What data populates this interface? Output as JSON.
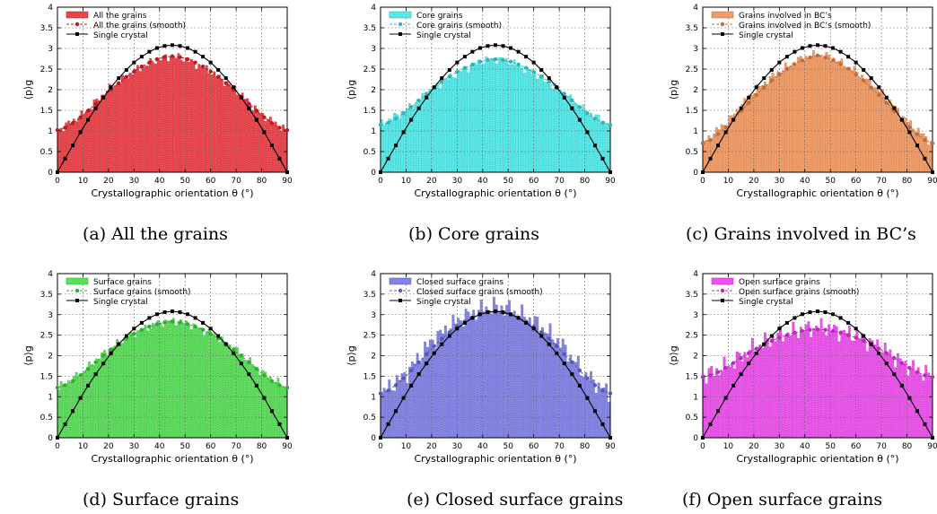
{
  "figure": {
    "captions": [
      "(a)  All the grains",
      "(b)  Core grains",
      "(c)  Grains involved in BC’s",
      "(d)  Surface grains",
      "(e)  Closed surface grains",
      "(f)  Open surface grains"
    ]
  },
  "chart_data": [
    {
      "type": "bar",
      "panel": "a",
      "xlabel": "Crystallographic orientation θ (°)",
      "ylabel": "⟨p⟩g",
      "xlim": [
        0,
        90
      ],
      "ylim": [
        0,
        4
      ],
      "xticks": [
        0,
        10,
        20,
        30,
        40,
        50,
        60,
        70,
        80,
        90
      ],
      "yticks": [
        0,
        0.5,
        1,
        1.5,
        2,
        2.5,
        3,
        3.5,
        4
      ],
      "grid": true,
      "legend_position": "top-left",
      "color": "#e8232a",
      "legend": [
        "All the grains",
        "All the grains (smooth)",
        "Single crystal"
      ],
      "histogram_profile": {
        "x": [
          0,
          10,
          20,
          30,
          40,
          45,
          50,
          60,
          70,
          80,
          90
        ],
        "y": [
          1.0,
          1.4,
          2.0,
          2.45,
          2.75,
          2.8,
          2.75,
          2.45,
          2.0,
          1.4,
          1.0
        ]
      },
      "smooth": {
        "x": [
          0,
          3,
          6,
          9,
          12,
          15,
          18,
          21,
          24,
          27,
          30,
          33,
          36,
          39,
          42,
          45,
          48,
          51,
          54,
          57,
          60,
          63,
          66,
          69,
          72,
          75,
          78,
          81,
          84,
          87,
          90
        ],
        "y": [
          1.02,
          1.08,
          1.19,
          1.33,
          1.49,
          1.66,
          1.83,
          2.0,
          2.16,
          2.31,
          2.44,
          2.56,
          2.66,
          2.74,
          2.79,
          2.81,
          2.79,
          2.74,
          2.66,
          2.56,
          2.44,
          2.31,
          2.16,
          2.0,
          1.83,
          1.66,
          1.49,
          1.33,
          1.19,
          1.08,
          1.02
        ]
      },
      "single_crystal": {
        "x": [
          0,
          3,
          6,
          9,
          12,
          15,
          18,
          21,
          24,
          27,
          30,
          33,
          36,
          39,
          42,
          45,
          48,
          51,
          54,
          57,
          60,
          63,
          66,
          69,
          72,
          75,
          78,
          81,
          84,
          87,
          90
        ],
        "y": [
          0.0,
          0.33,
          0.65,
          0.97,
          1.27,
          1.55,
          1.81,
          2.06,
          2.28,
          2.48,
          2.66,
          2.8,
          2.92,
          3.01,
          3.06,
          3.08,
          3.06,
          3.01,
          2.92,
          2.8,
          2.66,
          2.48,
          2.28,
          2.06,
          1.81,
          1.55,
          1.27,
          0.97,
          0.65,
          0.33,
          0.0
        ]
      }
    },
    {
      "type": "bar",
      "panel": "b",
      "xlabel": "Crystallographic orientation θ (°)",
      "ylabel": "⟨p⟩g",
      "xlim": [
        0,
        90
      ],
      "ylim": [
        0,
        4
      ],
      "xticks": [
        0,
        10,
        20,
        30,
        40,
        50,
        60,
        70,
        80,
        90
      ],
      "yticks": [
        0,
        0.5,
        1,
        1.5,
        2,
        2.5,
        3,
        3.5,
        4
      ],
      "grid": true,
      "legend_position": "top-left",
      "color": "#38e6e6",
      "legend": [
        "Core grains",
        "Core grains (smooth)",
        "Single crystal"
      ],
      "histogram_profile": {
        "x": [
          0,
          10,
          20,
          30,
          40,
          45,
          50,
          60,
          70,
          80,
          90
        ],
        "y": [
          1.15,
          1.5,
          2.0,
          2.4,
          2.7,
          2.75,
          2.7,
          2.4,
          2.0,
          1.5,
          1.15
        ]
      },
      "smooth": {
        "x": [
          0,
          3,
          6,
          9,
          12,
          15,
          18,
          21,
          24,
          27,
          30,
          33,
          36,
          39,
          42,
          45,
          48,
          51,
          54,
          57,
          60,
          63,
          66,
          69,
          72,
          75,
          78,
          81,
          84,
          87,
          90
        ],
        "y": [
          1.15,
          1.2,
          1.3,
          1.43,
          1.58,
          1.74,
          1.9,
          2.05,
          2.19,
          2.32,
          2.43,
          2.53,
          2.61,
          2.68,
          2.72,
          2.74,
          2.72,
          2.68,
          2.61,
          2.53,
          2.43,
          2.32,
          2.19,
          2.05,
          1.9,
          1.74,
          1.58,
          1.43,
          1.3,
          1.2,
          1.15
        ]
      },
      "single_crystal": {
        "x": [
          0,
          3,
          6,
          9,
          12,
          15,
          18,
          21,
          24,
          27,
          30,
          33,
          36,
          39,
          42,
          45,
          48,
          51,
          54,
          57,
          60,
          63,
          66,
          69,
          72,
          75,
          78,
          81,
          84,
          87,
          90
        ],
        "y": [
          0.0,
          0.33,
          0.65,
          0.97,
          1.27,
          1.55,
          1.81,
          2.06,
          2.28,
          2.48,
          2.66,
          2.8,
          2.92,
          3.01,
          3.06,
          3.08,
          3.06,
          3.01,
          2.92,
          2.8,
          2.66,
          2.48,
          2.28,
          2.06,
          1.81,
          1.55,
          1.27,
          0.97,
          0.65,
          0.33,
          0.0
        ]
      }
    },
    {
      "type": "bar",
      "panel": "c",
      "xlabel": "Crystallographic orientation θ (°)",
      "ylabel": "⟨p⟩g",
      "xlim": [
        0,
        90
      ],
      "ylim": [
        0,
        4
      ],
      "xticks": [
        0,
        10,
        20,
        30,
        40,
        50,
        60,
        70,
        80,
        90
      ],
      "yticks": [
        0,
        0.5,
        1,
        1.5,
        2,
        2.5,
        3,
        3.5,
        4
      ],
      "grid": true,
      "legend_position": "top-left",
      "color": "#f08a4b",
      "legend": [
        "Grains involved in BC’s",
        "Grains involved in BC’s (smooth)",
        "Single crystal"
      ],
      "histogram_profile": {
        "x": [
          0,
          10,
          20,
          30,
          40,
          45,
          50,
          60,
          70,
          80,
          90
        ],
        "y": [
          0.7,
          1.25,
          1.95,
          2.45,
          2.8,
          2.85,
          2.8,
          2.45,
          1.95,
          1.25,
          0.7
        ]
      },
      "smooth": {
        "x": [
          0,
          3,
          6,
          9,
          12,
          15,
          18,
          21,
          24,
          27,
          30,
          33,
          36,
          39,
          42,
          45,
          48,
          51,
          54,
          57,
          60,
          63,
          66,
          69,
          72,
          75,
          78,
          81,
          84,
          87,
          90
        ],
        "y": [
          0.7,
          0.78,
          0.92,
          1.09,
          1.28,
          1.48,
          1.68,
          1.87,
          2.05,
          2.22,
          2.37,
          2.5,
          2.62,
          2.71,
          2.78,
          2.83,
          2.78,
          2.71,
          2.62,
          2.5,
          2.37,
          2.22,
          2.05,
          1.87,
          1.68,
          1.48,
          1.28,
          1.09,
          0.92,
          0.78,
          0.7
        ]
      },
      "single_crystal": {
        "x": [
          0,
          3,
          6,
          9,
          12,
          15,
          18,
          21,
          24,
          27,
          30,
          33,
          36,
          39,
          42,
          45,
          48,
          51,
          54,
          57,
          60,
          63,
          66,
          69,
          72,
          75,
          78,
          81,
          84,
          87,
          90
        ],
        "y": [
          0.0,
          0.33,
          0.65,
          0.97,
          1.27,
          1.55,
          1.81,
          2.06,
          2.28,
          2.48,
          2.66,
          2.8,
          2.92,
          3.01,
          3.06,
          3.08,
          3.06,
          3.01,
          2.92,
          2.8,
          2.66,
          2.48,
          2.28,
          2.06,
          1.81,
          1.55,
          1.27,
          0.97,
          0.65,
          0.33,
          0.0
        ]
      }
    },
    {
      "type": "bar",
      "panel": "d",
      "xlabel": "Crystallographic orientation θ (°)",
      "ylabel": "⟨p⟩g",
      "xlim": [
        0,
        90
      ],
      "ylim": [
        0,
        4
      ],
      "xticks": [
        0,
        10,
        20,
        30,
        40,
        50,
        60,
        70,
        80,
        90
      ],
      "yticks": [
        0,
        0.5,
        1,
        1.5,
        2,
        2.5,
        3,
        3.5,
        4
      ],
      "grid": true,
      "legend_position": "top-left",
      "color": "#3fd83f",
      "legend": [
        "Surface grains",
        "Surface grains (smooth)",
        "Single crystal"
      ],
      "histogram_profile": {
        "x": [
          0,
          10,
          20,
          30,
          40,
          45,
          50,
          60,
          70,
          80,
          90
        ],
        "y": [
          1.2,
          1.6,
          2.15,
          2.55,
          2.8,
          2.85,
          2.8,
          2.55,
          2.15,
          1.6,
          1.2
        ]
      },
      "smooth": {
        "x": [
          0,
          3,
          6,
          9,
          12,
          15,
          18,
          21,
          24,
          27,
          30,
          33,
          36,
          39,
          42,
          45,
          48,
          51,
          54,
          57,
          60,
          63,
          66,
          69,
          72,
          75,
          78,
          81,
          84,
          87,
          90
        ],
        "y": [
          1.22,
          1.28,
          1.38,
          1.52,
          1.68,
          1.84,
          2.0,
          2.15,
          2.29,
          2.42,
          2.53,
          2.63,
          2.71,
          2.77,
          2.81,
          2.83,
          2.81,
          2.77,
          2.71,
          2.63,
          2.53,
          2.42,
          2.29,
          2.15,
          2.0,
          1.84,
          1.68,
          1.52,
          1.38,
          1.28,
          1.22
        ]
      },
      "single_crystal": {
        "x": [
          0,
          3,
          6,
          9,
          12,
          15,
          18,
          21,
          24,
          27,
          30,
          33,
          36,
          39,
          42,
          45,
          48,
          51,
          54,
          57,
          60,
          63,
          66,
          69,
          72,
          75,
          78,
          81,
          84,
          87,
          90
        ],
        "y": [
          0.0,
          0.33,
          0.65,
          0.97,
          1.27,
          1.55,
          1.81,
          2.06,
          2.28,
          2.48,
          2.66,
          2.8,
          2.92,
          3.01,
          3.06,
          3.08,
          3.06,
          3.01,
          2.92,
          2.8,
          2.66,
          2.48,
          2.28,
          2.06,
          1.81,
          1.55,
          1.27,
          0.97,
          0.65,
          0.33,
          0.0
        ]
      }
    },
    {
      "type": "bar",
      "panel": "e",
      "xlabel": "Crystallographic orientation θ (°)",
      "ylabel": "⟨p⟩g",
      "xlim": [
        0,
        90
      ],
      "ylim": [
        0,
        4
      ],
      "xticks": [
        0,
        10,
        20,
        30,
        40,
        50,
        60,
        70,
        80,
        90
      ],
      "yticks": [
        0,
        0.5,
        1,
        1.5,
        2,
        2.5,
        3,
        3.5,
        4
      ],
      "grid": true,
      "legend_position": "top-left",
      "color": "#6d6ee0",
      "legend": [
        "Closed surface grains",
        "Closed surface grains (smooth)",
        "Single crystal"
      ],
      "histogram_profile": {
        "x": [
          0,
          10,
          20,
          30,
          40,
          45,
          50,
          60,
          70,
          80,
          90
        ],
        "y": [
          1.05,
          1.55,
          2.35,
          2.85,
          3.15,
          3.2,
          3.15,
          2.85,
          2.35,
          1.55,
          1.05
        ]
      },
      "smooth": {
        "x": [
          0,
          3,
          6,
          9,
          12,
          15,
          18,
          21,
          24,
          27,
          30,
          33,
          36,
          39,
          42,
          45,
          48,
          51,
          54,
          57,
          60,
          63,
          66,
          69,
          72,
          75,
          78,
          81,
          84,
          87,
          90
        ],
        "y": [
          1.08,
          1.15,
          1.28,
          1.45,
          1.64,
          1.84,
          2.04,
          2.23,
          2.41,
          2.57,
          2.71,
          2.83,
          2.93,
          3.0,
          3.05,
          3.07,
          3.05,
          3.0,
          2.93,
          2.83,
          2.71,
          2.57,
          2.41,
          2.23,
          2.04,
          1.84,
          1.64,
          1.45,
          1.28,
          1.15,
          1.08
        ]
      },
      "single_crystal": {
        "x": [
          0,
          3,
          6,
          9,
          12,
          15,
          18,
          21,
          24,
          27,
          30,
          33,
          36,
          39,
          42,
          45,
          48,
          51,
          54,
          57,
          60,
          63,
          66,
          69,
          72,
          75,
          78,
          81,
          84,
          87,
          90
        ],
        "y": [
          0.0,
          0.33,
          0.65,
          0.97,
          1.27,
          1.55,
          1.81,
          2.06,
          2.28,
          2.48,
          2.66,
          2.8,
          2.92,
          3.01,
          3.06,
          3.08,
          3.06,
          3.01,
          2.92,
          2.8,
          2.66,
          2.48,
          2.28,
          2.06,
          1.81,
          1.55,
          1.27,
          0.97,
          0.65,
          0.33,
          0.0
        ]
      }
    },
    {
      "type": "bar",
      "panel": "f",
      "xlabel": "Crystallographic orientation θ (°)",
      "ylabel": "⟨p⟩g",
      "xlim": [
        0,
        90
      ],
      "ylim": [
        0,
        4
      ],
      "xticks": [
        0,
        10,
        20,
        30,
        40,
        50,
        60,
        70,
        80,
        90
      ],
      "yticks": [
        0,
        0.5,
        1,
        1.5,
        2,
        2.5,
        3,
        3.5,
        4
      ],
      "grid": true,
      "legend_position": "top-left",
      "color": "#ea35ea",
      "legend": [
        "Open surface grains",
        "Open surface grains (smooth)",
        "Single crystal"
      ],
      "histogram_profile": {
        "x": [
          0,
          10,
          20,
          30,
          40,
          45,
          50,
          60,
          70,
          80,
          90
        ],
        "y": [
          1.5,
          1.75,
          2.2,
          2.5,
          2.65,
          2.7,
          2.65,
          2.5,
          2.2,
          1.75,
          1.5
        ]
      },
      "smooth": {
        "x": [
          0,
          3,
          6,
          9,
          12,
          15,
          18,
          21,
          24,
          27,
          30,
          33,
          36,
          39,
          42,
          45,
          48,
          51,
          54,
          57,
          60,
          63,
          66,
          69,
          72,
          75,
          78,
          81,
          84,
          87,
          90
        ],
        "y": [
          1.48,
          1.52,
          1.6,
          1.7,
          1.82,
          1.94,
          2.06,
          2.17,
          2.27,
          2.36,
          2.44,
          2.5,
          2.56,
          2.6,
          2.63,
          2.64,
          2.63,
          2.6,
          2.56,
          2.5,
          2.44,
          2.36,
          2.27,
          2.17,
          2.06,
          1.94,
          1.82,
          1.7,
          1.6,
          1.52,
          1.48
        ]
      },
      "single_crystal": {
        "x": [
          0,
          3,
          6,
          9,
          12,
          15,
          18,
          21,
          24,
          27,
          30,
          33,
          36,
          39,
          42,
          45,
          48,
          51,
          54,
          57,
          60,
          63,
          66,
          69,
          72,
          75,
          78,
          81,
          84,
          87,
          90
        ],
        "y": [
          0.0,
          0.33,
          0.65,
          0.97,
          1.27,
          1.55,
          1.81,
          2.06,
          2.28,
          2.48,
          2.66,
          2.8,
          2.92,
          3.01,
          3.06,
          3.08,
          3.06,
          3.01,
          2.92,
          2.8,
          2.66,
          2.48,
          2.28,
          2.06,
          1.81,
          1.55,
          1.27,
          0.97,
          0.65,
          0.33,
          0.0
        ]
      }
    }
  ]
}
